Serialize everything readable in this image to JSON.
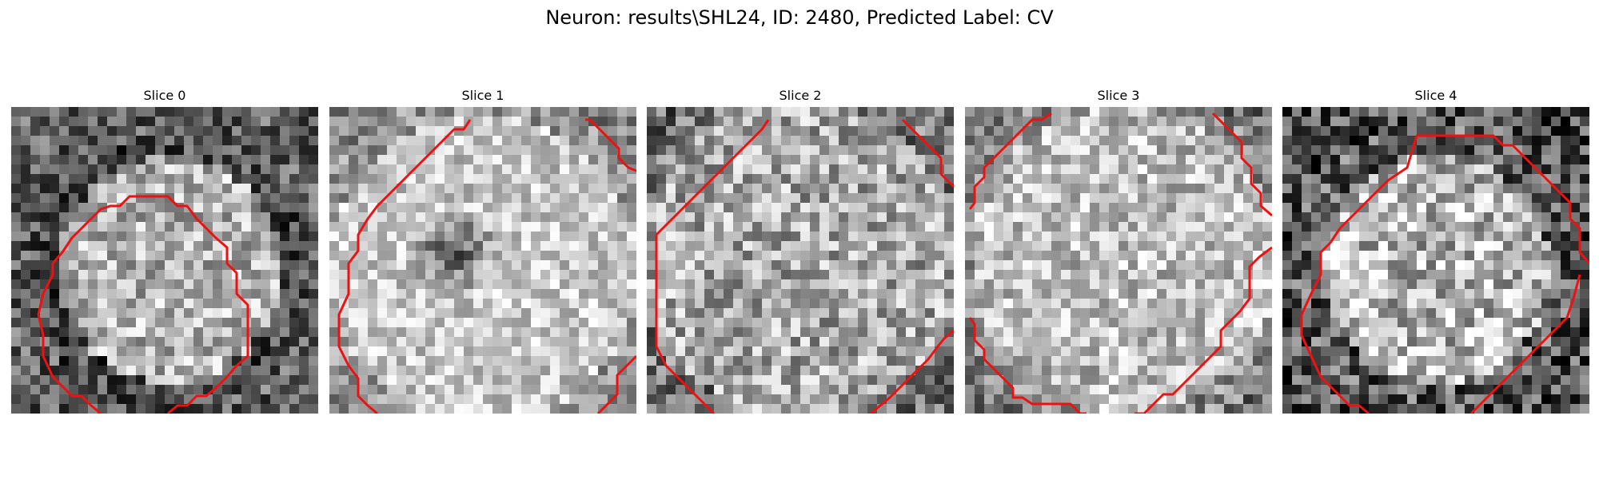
{
  "figure": {
    "title": "Neuron: results\\SHL24, ID: 2480, Predicted Label: CV"
  },
  "slices": [
    {
      "title": "Slice 0",
      "image": "grayscale-neuron-cell-patch",
      "contour_color": "#ee1111"
    },
    {
      "title": "Slice 1",
      "image": "grayscale-neuron-cell-patch",
      "contour_color": "#ee1111"
    },
    {
      "title": "Slice 2",
      "image": "grayscale-neuron-cell-patch",
      "contour_color": "#ee1111"
    },
    {
      "title": "Slice 3",
      "image": "grayscale-neuron-cell-patch",
      "contour_color": "#ee1111"
    },
    {
      "title": "Slice 4",
      "image": "grayscale-neuron-cell-patch",
      "contour_color": "#ee1111"
    }
  ]
}
